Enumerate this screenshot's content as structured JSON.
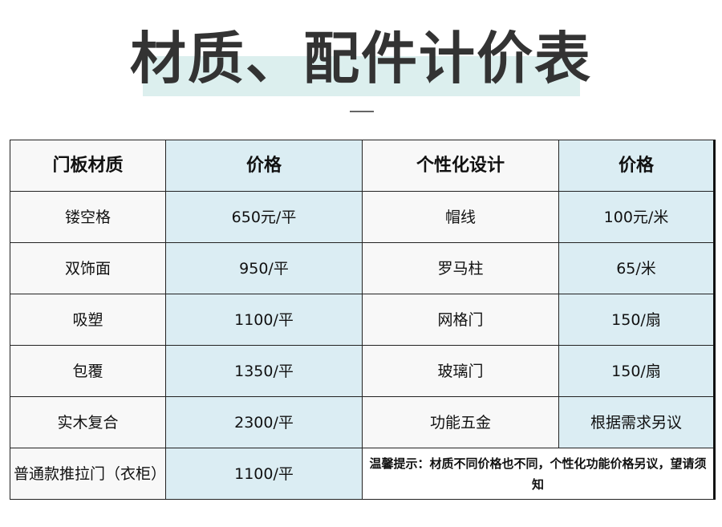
{
  "title": "材质、配件计价表",
  "headers": [
    "门板材质",
    "价格",
    "个性化设计",
    "价格"
  ],
  "rows": [
    [
      "镂空格",
      "650元/平",
      "帽线",
      "100元/米"
    ],
    [
      "双饰面",
      "950/平",
      "罗马柱",
      "65/米"
    ],
    [
      "吸塑",
      "1100/平",
      "网格门",
      "150/扇"
    ],
    [
      "包覆",
      "1350/平",
      "玻璃门",
      "150/扇"
    ],
    [
      "实木复合",
      "2300/平",
      "功能五金",
      "根据需求另议"
    ]
  ],
  "last_row": {
    "material": "普通款推拉门（衣柜）",
    "price": "1100/平",
    "note": "温馨提示：材质不同价格也不同，个性化功能价格另议，望请须知"
  }
}
